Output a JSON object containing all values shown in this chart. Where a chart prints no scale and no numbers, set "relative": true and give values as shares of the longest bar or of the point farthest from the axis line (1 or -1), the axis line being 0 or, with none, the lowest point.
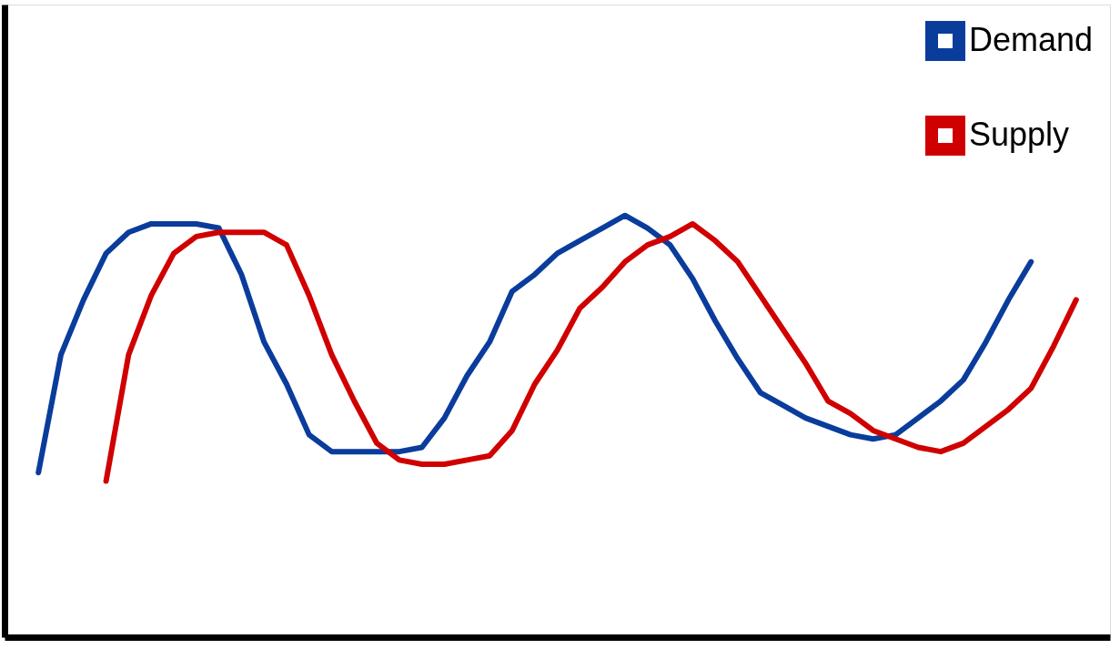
{
  "chart_data": {
    "type": "line",
    "relative": true,
    "tick_labels": false,
    "legend": "top right",
    "grid": false,
    "categories": [
      null,
      null,
      null,
      null,
      null,
      null,
      null,
      null,
      null,
      null,
      null,
      null,
      null,
      null,
      null,
      null,
      null,
      null,
      null,
      null,
      null,
      null,
      null,
      null,
      null,
      null,
      null,
      null,
      null,
      null,
      null,
      null,
      null,
      null,
      null,
      null,
      null,
      null,
      null,
      null,
      null,
      null,
      null,
      null,
      null,
      null,
      null
    ],
    "series": [
      {
        "name": "Demand",
        "color": "#0a3c9c",
        "values": [
          0.39,
          0.67,
          0.8,
          0.91,
          0.96,
          0.98,
          0.98,
          0.98,
          0.97,
          0.86,
          0.7,
          0.6,
          0.48,
          0.44,
          0.44,
          0.44,
          0.44,
          0.45,
          0.52,
          0.62,
          0.7,
          0.82,
          0.86,
          0.91,
          0.94,
          0.97,
          1,
          0.97,
          0.93,
          0.85,
          0.75,
          0.66,
          0.58,
          0.55,
          0.52,
          0.5,
          0.48,
          0.47,
          0.48,
          0.52,
          0.56,
          0.61,
          0.7,
          0.8,
          0.89,
          null,
          null
        ]
      },
      {
        "name": "Supply",
        "color": "#d00000",
        "values": [
          null,
          null,
          null,
          0.37,
          0.67,
          0.81,
          0.91,
          0.95,
          0.96,
          0.96,
          0.96,
          0.93,
          0.81,
          0.67,
          0.56,
          0.46,
          0.42,
          0.41,
          0.41,
          0.42,
          0.43,
          0.49,
          0.6,
          0.68,
          0.78,
          0.83,
          0.89,
          0.93,
          0.95,
          0.98,
          0.94,
          0.89,
          0.81,
          0.73,
          0.65,
          0.56,
          0.53,
          0.49,
          0.47,
          0.45,
          0.44,
          0.46,
          0.5,
          0.54,
          0.59,
          0.69,
          0.8
        ]
      }
    ]
  }
}
